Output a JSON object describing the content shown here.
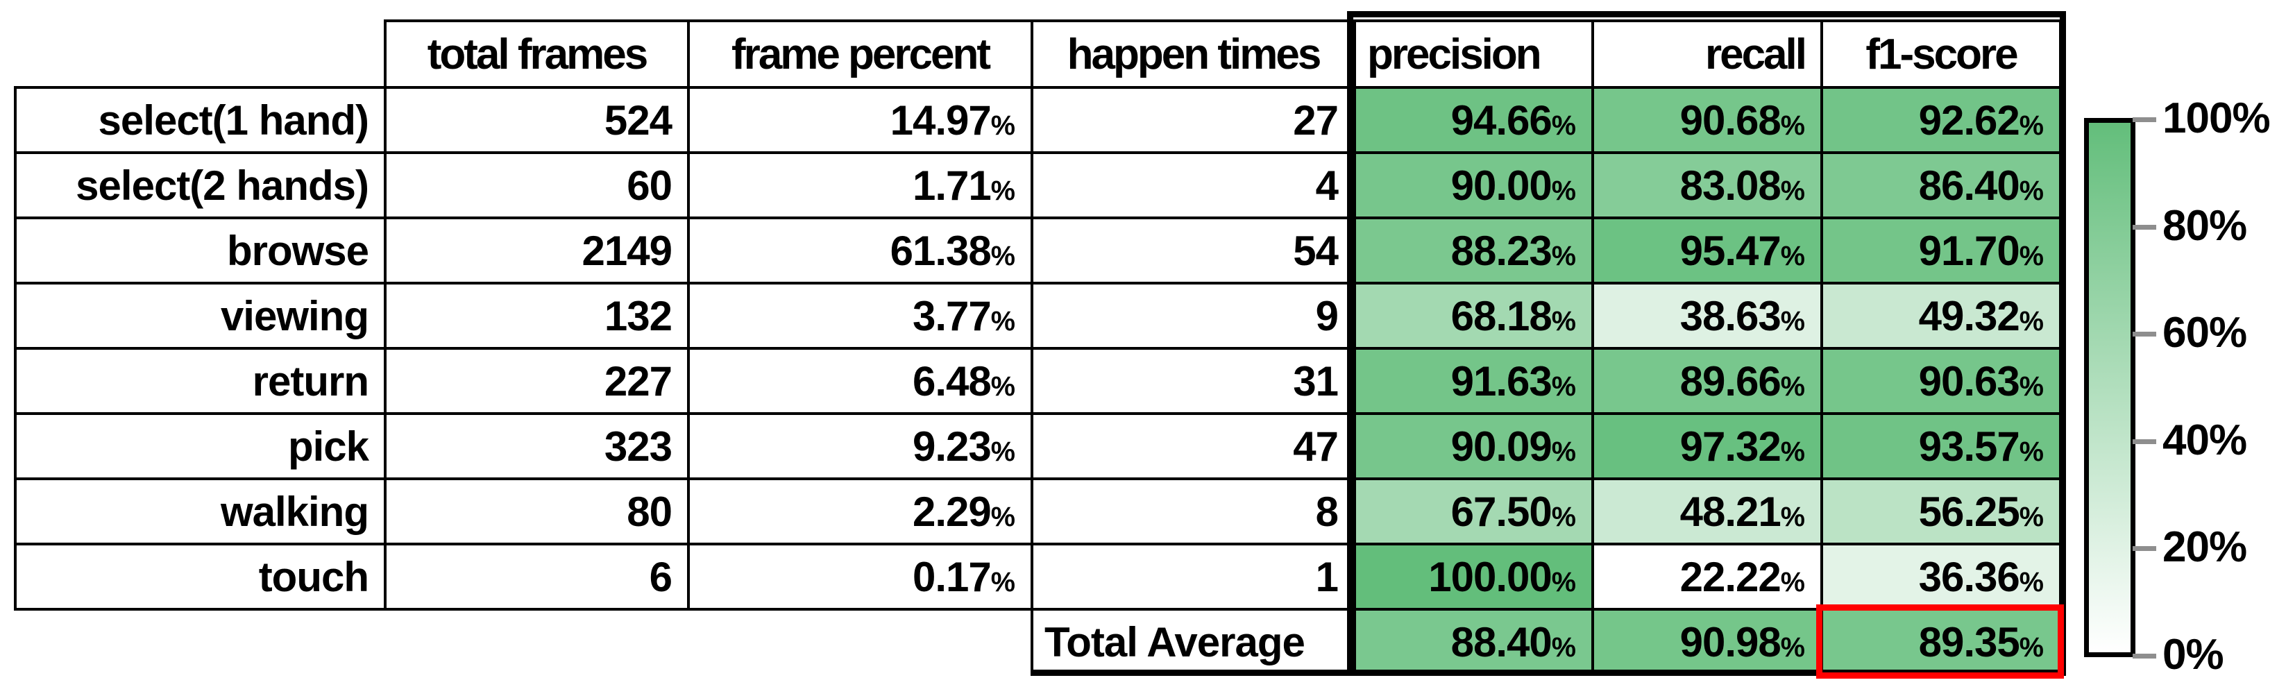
{
  "chart_data": {
    "type": "heatmap_table",
    "columns": [
      "total frames",
      "frame percent",
      "happen times",
      "precision",
      "recall",
      "f1-score"
    ],
    "rows": [
      {
        "label": "select(1 hand)",
        "total_frames": 524,
        "frame_percent": 14.97,
        "happen_times": 27,
        "precision": 94.66,
        "recall": 90.68,
        "f1": 92.62
      },
      {
        "label": "select(2 hands)",
        "total_frames": 60,
        "frame_percent": 1.71,
        "happen_times": 4,
        "precision": 90.0,
        "recall": 83.08,
        "f1": 86.4
      },
      {
        "label": "browse",
        "total_frames": 2149,
        "frame_percent": 61.38,
        "happen_times": 54,
        "precision": 88.23,
        "recall": 95.47,
        "f1": 91.7
      },
      {
        "label": "viewing",
        "total_frames": 132,
        "frame_percent": 3.77,
        "happen_times": 9,
        "precision": 68.18,
        "recall": 38.63,
        "f1": 49.32
      },
      {
        "label": "return",
        "total_frames": 227,
        "frame_percent": 6.48,
        "happen_times": 31,
        "precision": 91.63,
        "recall": 89.66,
        "f1": 90.63
      },
      {
        "label": "pick",
        "total_frames": 323,
        "frame_percent": 9.23,
        "happen_times": 47,
        "precision": 90.09,
        "recall": 97.32,
        "f1": 93.57
      },
      {
        "label": "walking",
        "total_frames": 80,
        "frame_percent": 2.29,
        "happen_times": 8,
        "precision": 67.5,
        "recall": 48.21,
        "f1": 56.25
      },
      {
        "label": "touch",
        "total_frames": 6,
        "frame_percent": 0.17,
        "happen_times": 1,
        "precision": 100.0,
        "recall": 22.22,
        "f1": 36.36
      }
    ],
    "total_row": {
      "label": "Total Average",
      "precision": 88.4,
      "recall": 90.98,
      "f1": 89.35
    },
    "highlighted_cell": {
      "row": "Total Average",
      "column": "f1-score",
      "value": 89.35,
      "border_color": "#FF0000"
    },
    "colormap": {
      "low": "#FFFFFF",
      "high": "#63BE7B",
      "domain_min": 22.22,
      "domain_max": 100
    },
    "legend": {
      "position": "right",
      "gradient_top": "#63BE7B",
      "gradient_bottom": "#FFFFFF",
      "ticks": [
        "100%",
        "80%",
        "60%",
        "40%",
        "20%",
        "0%"
      ]
    }
  }
}
